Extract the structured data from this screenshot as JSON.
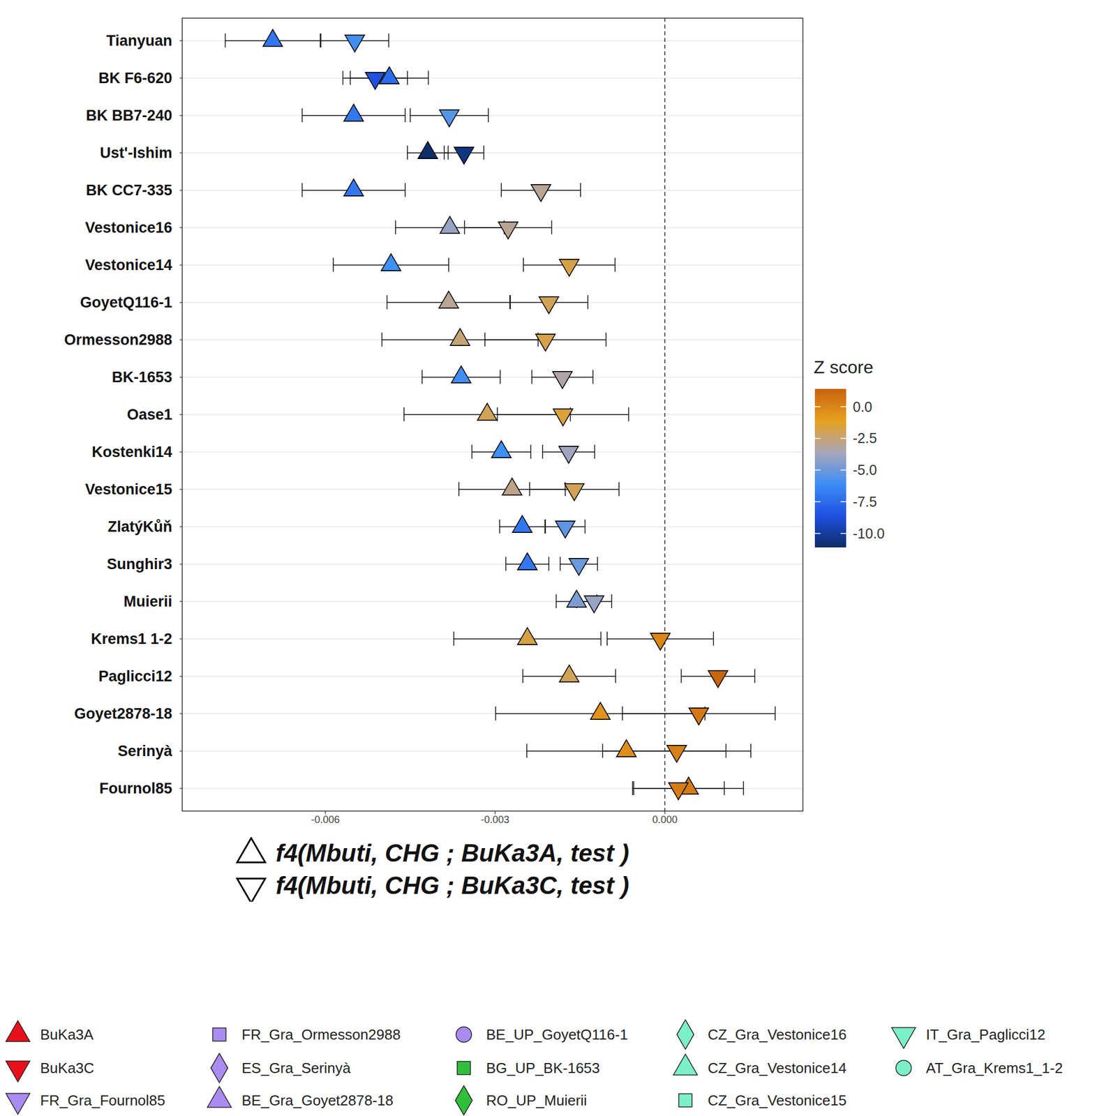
{
  "chart_data": {
    "type": "dot",
    "orientation": "horizontal",
    "categories": [
      "Tianyuan",
      "BK F6-620",
      "BK BB7-240",
      "Ust'-Ishim",
      "BK CC7-335",
      "Vestonice16",
      "Vestonice14",
      "GoyetQ116-1",
      "Ormesson2988",
      "BK-1653",
      "Oase1",
      "Kostenki14",
      "Vestonice15",
      "ZlatýKůň",
      "Sunghir3",
      "Muierii",
      "Krems1 1-2",
      "Paglicci12",
      "Goyet2878-18",
      "Serinyà",
      "Fournol85"
    ],
    "series": [
      {
        "name": "f4(Mbuti, CHG ; BuKa3A, test )",
        "marker": "triangle-up",
        "values": [
          -0.00693,
          -0.00487,
          -0.0055,
          -0.00419,
          -0.0055,
          -0.0038,
          -0.00484,
          -0.00382,
          -0.00362,
          -0.0036,
          -0.00314,
          -0.00289,
          -0.0027,
          -0.00252,
          -0.00243,
          -0.00156,
          -0.00243,
          -0.00169,
          -0.00114,
          -0.00068,
          0.00042
        ],
        "error": [
          0.00084,
          0.00069,
          0.00091,
          0.00036,
          0.00091,
          0.00096,
          0.00102,
          0.00109,
          0.00138,
          0.00069,
          0.00147,
          0.00052,
          0.00094,
          0.0004,
          0.00038,
          0.00036,
          0.0013,
          0.00082,
          0.00185,
          0.00176,
          0.00097
        ],
        "z": [
          -7,
          -7.5,
          -7,
          -11,
          -7,
          -4,
          -6,
          -3,
          -2.5,
          -6,
          -2,
          -6,
          -2.8,
          -7,
          -7,
          -4.6,
          -1.8,
          -2,
          -0.6,
          -0.4,
          0.4
        ]
      },
      {
        "name": "f4(Mbuti, CHG ; BuKa3C, test )",
        "marker": "triangle-down",
        "values": [
          -0.00548,
          -0.00512,
          -0.00381,
          -0.00355,
          -0.00219,
          -0.00277,
          -0.00169,
          -0.00205,
          -0.00211,
          -0.00181,
          -0.0018,
          -0.0017,
          -0.0016,
          -0.00176,
          -0.00152,
          -0.00125,
          -8e-05,
          0.00094,
          0.0006,
          0.00021,
          0.00024
        ],
        "error": [
          0.0006,
          0.00057,
          0.00069,
          0.00035,
          0.0007,
          0.00077,
          0.00081,
          0.00069,
          0.00107,
          0.00054,
          0.00116,
          0.00046,
          0.00079,
          0.00035,
          0.00033,
          0.00031,
          0.00094,
          0.00065,
          0.00135,
          0.00131,
          0.00081
        ],
        "z": [
          -6,
          -8.5,
          -5.5,
          -10.5,
          -3,
          -3,
          -1.8,
          -2,
          -1.8,
          -3.3,
          -1.5,
          -3.8,
          -2,
          -5.3,
          -5,
          -4,
          -0.1,
          1.3,
          0.5,
          0.2,
          0.3
        ]
      }
    ],
    "xlim": [
      -0.00853,
      0.00244
    ],
    "xticks": [
      {
        "value": -0.006,
        "label": "-0.006"
      },
      {
        "value": -0.003,
        "label": "-0.003"
      },
      {
        "value": 0,
        "label": "0.000"
      }
    ],
    "reference_line": 0,
    "grid": true,
    "colorbar": {
      "title": "Z score",
      "range": [
        -11.1,
        1.4
      ],
      "ticks": [
        {
          "value": 0,
          "label": "0.0"
        },
        {
          "value": -2.5,
          "label": "-2.5"
        },
        {
          "value": -5,
          "label": "-5.0"
        },
        {
          "value": -7.5,
          "label": "-7.5"
        },
        {
          "value": -10,
          "label": "-10.0"
        }
      ],
      "colors": [
        "#0b2d66",
        "#1f4fe0",
        "#3c8ef5",
        "#a9a6b8",
        "#e6a11f",
        "#c8610e"
      ]
    },
    "sample_legend": [
      {
        "name": "BuKa3A",
        "color": "#e8101a",
        "marker": "triangle-up"
      },
      {
        "name": "BuKa3C",
        "color": "#e8101a",
        "marker": "triangle-down"
      },
      {
        "name": "FR_Gra_Fournol85",
        "color": "#a88cf0",
        "marker": "triangle-down"
      },
      {
        "name": "FR_Gra_Ormesson2988",
        "color": "#a88cf0",
        "marker": "square"
      },
      {
        "name": "ES_Gra_Serinyà",
        "color": "#a88cf0",
        "marker": "diamond"
      },
      {
        "name": "BE_Gra_Goyet2878-18",
        "color": "#a88cf0",
        "marker": "triangle-up"
      },
      {
        "name": "BE_UP_GoyetQ116-1",
        "color": "#a88cf0",
        "marker": "circle"
      },
      {
        "name": "BG_UP_BK-1653",
        "color": "#2fbf3a",
        "marker": "square"
      },
      {
        "name": "RO_UP_Muierii",
        "color": "#2fbf3a",
        "marker": "diamond"
      },
      {
        "name": "CZ_Gra_Vestonice16",
        "color": "#7cf0c8",
        "marker": "diamond"
      },
      {
        "name": "CZ_Gra_Vestonice14",
        "color": "#7cf0c8",
        "marker": "triangle-up"
      },
      {
        "name": "CZ_Gra_Vestonice15",
        "color": "#7cf0c8",
        "marker": "square"
      },
      {
        "name": "IT_Gra_Paglicci12",
        "color": "#7cf0c8",
        "marker": "triangle-down"
      },
      {
        "name": "AT_Gra_Krems1_1-2",
        "color": "#7cf0c8",
        "marker": "circle"
      }
    ]
  }
}
